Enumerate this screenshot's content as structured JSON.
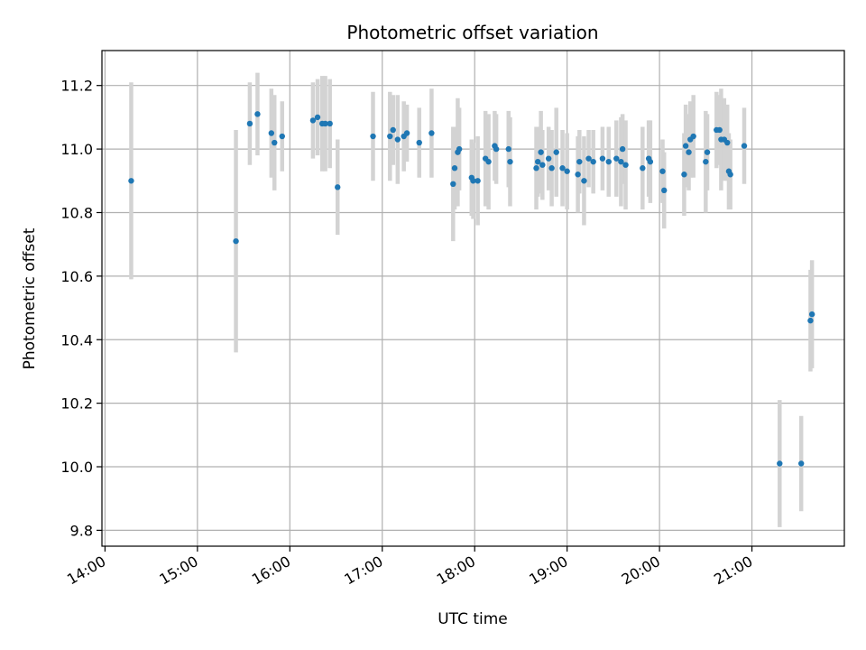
{
  "chart_data": {
    "type": "scatter",
    "title": "Photometric offset variation",
    "xlabel": "UTC time",
    "ylabel": "Photometric offset",
    "xlim": [
      "13:58",
      "22:00"
    ],
    "ylim": [
      9.75,
      11.31
    ],
    "x_ticks": [
      "14:00",
      "15:00",
      "16:00",
      "17:00",
      "18:00",
      "19:00",
      "20:00",
      "21:00"
    ],
    "y_ticks": [
      "9.8",
      "10.0",
      "10.2",
      "10.4",
      "10.6",
      "10.8",
      "11.0",
      "11.2"
    ],
    "grid": true,
    "colors": {
      "point": "#1f77b4",
      "errorbar": "#d3d3d3",
      "grid": "#b0b0b0"
    },
    "series": [
      {
        "x": [
          "14:17",
          "15:25",
          "15:34",
          "15:39",
          "15:48",
          "15:50",
          "15:55",
          "16:15",
          "16:18",
          "16:21",
          "16:23",
          "16:26",
          "16:31",
          "16:54",
          "17:05",
          "17:07",
          "17:10",
          "17:14",
          "17:16",
          "17:24",
          "17:32",
          "17:46",
          "17:47",
          "17:49",
          "17:50",
          "17:58",
          "17:59",
          "18:02",
          "18:07",
          "18:09",
          "18:13",
          "18:14",
          "18:22",
          "18:23",
          "18:40",
          "18:41",
          "18:43",
          "18:44",
          "18:48",
          "18:50",
          "18:53",
          "18:57",
          "19:00",
          "19:07",
          "19:08",
          "19:11",
          "19:14",
          "19:17",
          "19:23",
          "19:27",
          "19:32",
          "19:35",
          "19:36",
          "19:38",
          "19:49",
          "19:53",
          "19:54",
          "20:02",
          "20:03",
          "20:16",
          "20:17",
          "20:19",
          "20:20",
          "20:22",
          "20:30",
          "20:31",
          "20:37",
          "20:39",
          "20:40",
          "20:42",
          "20:44",
          "20:45",
          "20:46",
          "20:55",
          "21:18",
          "21:32",
          "21:38",
          "21:39"
        ],
        "y": [
          10.9,
          10.71,
          11.08,
          11.11,
          11.05,
          11.02,
          11.04,
          11.09,
          11.1,
          11.08,
          11.08,
          11.08,
          10.88,
          11.04,
          11.04,
          11.06,
          11.03,
          11.04,
          11.05,
          11.02,
          11.05,
          10.89,
          10.94,
          10.99,
          11.0,
          10.91,
          10.9,
          10.9,
          10.97,
          10.96,
          11.01,
          11.0,
          11.0,
          10.96,
          10.94,
          10.96,
          10.99,
          10.95,
          10.97,
          10.94,
          10.99,
          10.94,
          10.93,
          10.92,
          10.96,
          10.9,
          10.97,
          10.96,
          10.97,
          10.96,
          10.97,
          10.96,
          11.0,
          10.95,
          10.94,
          10.97,
          10.96,
          10.93,
          10.87,
          10.92,
          11.01,
          10.99,
          11.03,
          11.04,
          10.96,
          10.99,
          11.06,
          11.06,
          11.03,
          11.03,
          11.02,
          10.93,
          10.92,
          11.01,
          10.01,
          10.01,
          10.46,
          10.48
        ],
        "err": [
          0.31,
          0.35,
          0.13,
          0.13,
          0.14,
          0.15,
          0.11,
          0.12,
          0.12,
          0.15,
          0.15,
          0.14,
          0.15,
          0.14,
          0.14,
          0.11,
          0.14,
          0.11,
          0.09,
          0.11,
          0.14,
          0.18,
          0.13,
          0.17,
          0.13,
          0.12,
          0.12,
          0.14,
          0.15,
          0.15,
          0.11,
          0.11,
          0.12,
          0.14,
          0.13,
          0.11,
          0.13,
          0.11,
          0.1,
          0.12,
          0.14,
          0.12,
          0.12,
          0.12,
          0.1,
          0.14,
          0.09,
          0.1,
          0.1,
          0.11,
          0.12,
          0.14,
          0.11,
          0.14,
          0.13,
          0.12,
          0.13,
          0.1,
          0.12,
          0.13,
          0.13,
          0.12,
          0.12,
          0.13,
          0.16,
          0.12,
          0.12,
          0.11,
          0.16,
          0.13,
          0.12,
          0.12,
          0.11,
          0.12,
          0.2,
          0.15,
          0.16,
          0.17
        ]
      }
    ]
  }
}
